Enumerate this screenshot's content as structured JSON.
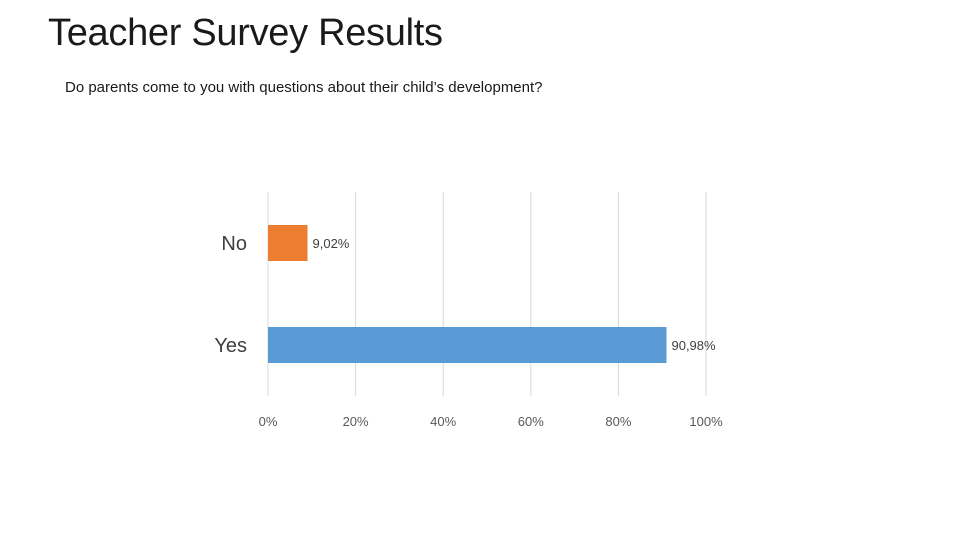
{
  "slide": {
    "title": "Teacher Survey Results"
  },
  "chart_data": {
    "type": "bar",
    "orientation": "horizontal",
    "title": "Do parents come to you with questions about their child’s development?",
    "categories": [
      "No",
      "Yes"
    ],
    "values": [
      9.02,
      90.98
    ],
    "data_labels": [
      "9,02%",
      "90,98%"
    ],
    "colors": [
      "#ED7D31",
      "#5B9BD5"
    ],
    "xlim": [
      0,
      100
    ],
    "x_ticks": [
      0,
      20,
      40,
      60,
      80,
      100
    ],
    "x_tick_labels": [
      "0%",
      "20%",
      "40%",
      "60%",
      "80%",
      "100%"
    ],
    "grid": true,
    "legend": "none",
    "xlabel": "",
    "ylabel": ""
  }
}
